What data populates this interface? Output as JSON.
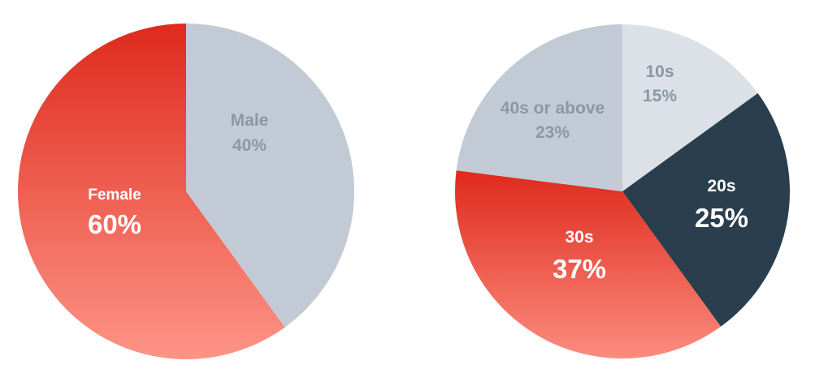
{
  "chart_data": [
    {
      "type": "pie",
      "name": "gender",
      "categories": [
        "Female",
        "Male"
      ],
      "values": [
        60,
        40
      ],
      "value_labels": [
        "60%",
        "40%"
      ],
      "colors": [
        "#e8352a",
        "#c2cbd5"
      ],
      "label_colors": [
        "#ffffff",
        "#8a97a4"
      ]
    },
    {
      "type": "pie",
      "name": "age",
      "categories": [
        "10s",
        "20s",
        "30s",
        "40s or above"
      ],
      "values": [
        15,
        25,
        37,
        23
      ],
      "value_labels": [
        "15%",
        "25%",
        "37%",
        "23%"
      ],
      "colors": [
        "#dbe1e7",
        "#2b3e4e",
        "#e8352a",
        "#c2cbd5"
      ],
      "label_colors": [
        "#8a97a4",
        "#ffffff",
        "#ffffff",
        "#8a97a4"
      ]
    }
  ]
}
